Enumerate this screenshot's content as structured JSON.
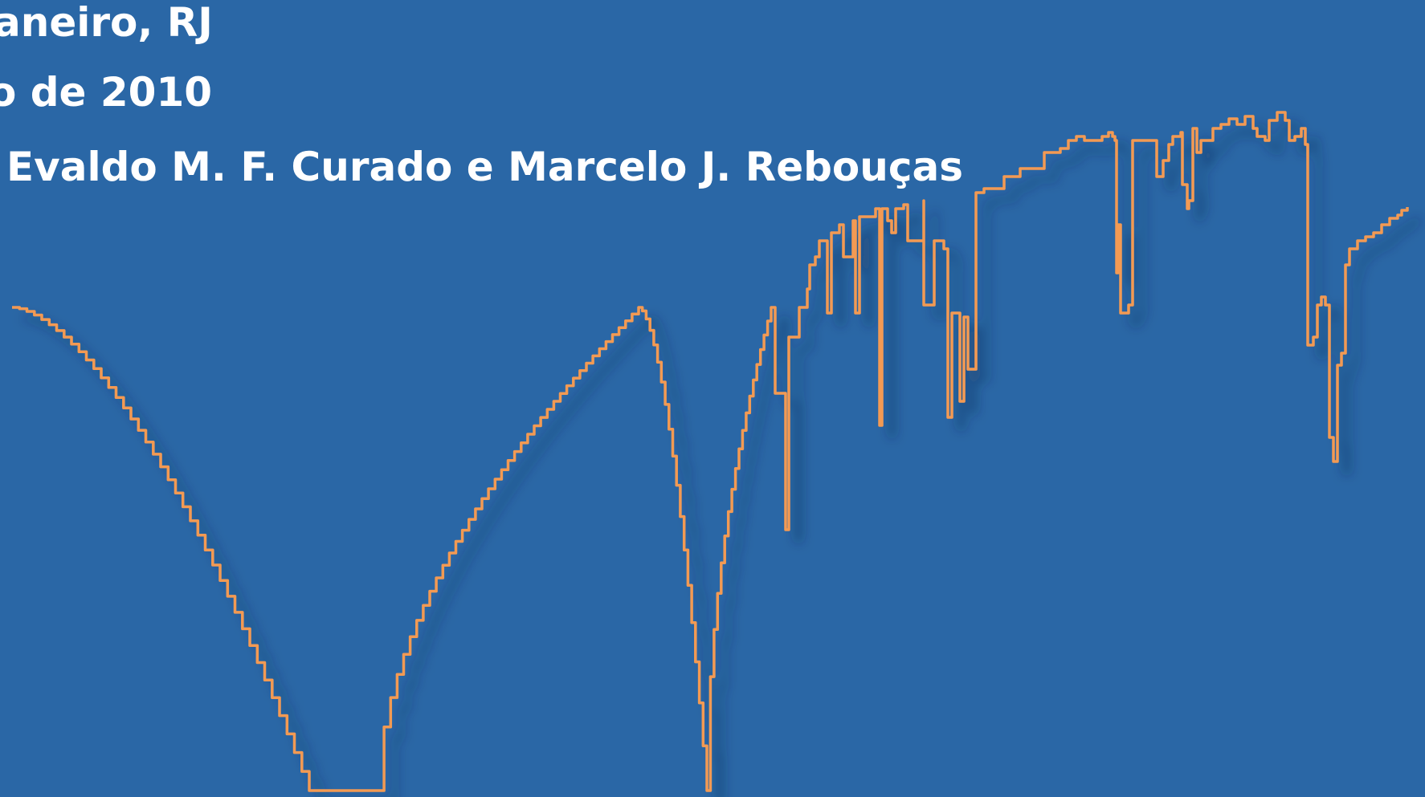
{
  "header": {
    "line1": "aneiro, RJ",
    "line2": "o de 2010",
    "line3": "Evaldo M. F. Curado e Marcelo J. Rebouças"
  },
  "colors": {
    "background": "#2a67a6",
    "curve": "#f39a52",
    "baseline": "#8fc96b",
    "text": "#ffffff"
  }
}
